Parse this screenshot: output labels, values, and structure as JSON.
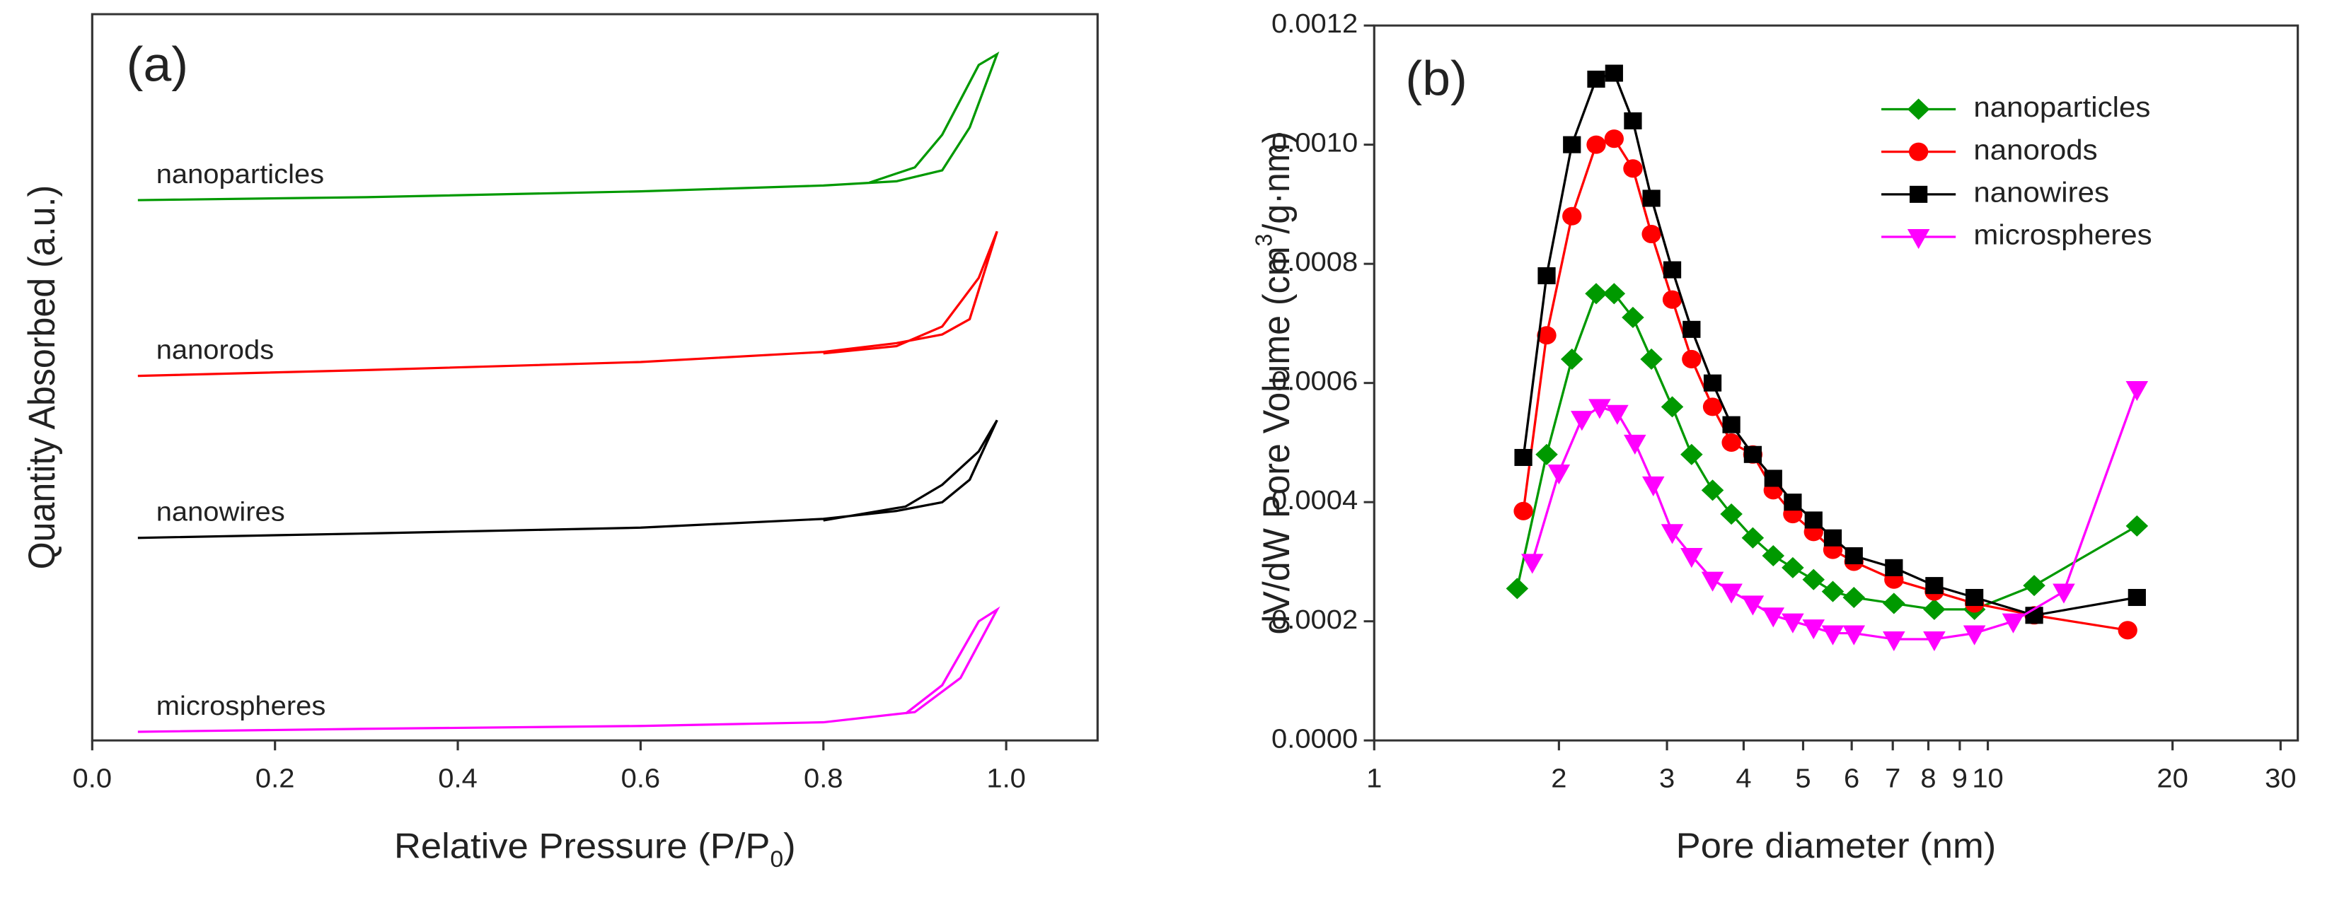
{
  "chart_data": [
    {
      "type": "line",
      "title": "(a)",
      "xlabel": [
        "Relative Pressure (P/P",
        "0",
        ")"
      ],
      "ylabel": "Quantity Absorbed (a.u.)",
      "xlim": [
        0,
        1.1
      ],
      "ylim": [
        0,
        100
      ],
      "xticks": [
        {
          "value": 0,
          "label": "0.0"
        },
        0.2,
        0.4,
        0.6,
        0.8,
        {
          "value": 1,
          "label": "1.0"
        }
      ],
      "series": [
        {
          "name": "nanoparticles",
          "color": "#009900",
          "x": [
            0.05,
            0.3,
            0.6,
            0.8,
            0.88,
            0.93,
            0.96,
            0.99,
            0.97,
            0.93,
            0.9,
            0.85
          ],
          "values": [
            74.4,
            74.8,
            75.6,
            76.4,
            77.0,
            78.5,
            84.4,
            94.5,
            93.0,
            83.4,
            78.9,
            76.8
          ]
        },
        {
          "name": "nanorods",
          "color": "#ff0000",
          "x": [
            0.05,
            0.3,
            0.6,
            0.8,
            0.88,
            0.93,
            0.96,
            0.99,
            0.97,
            0.93,
            0.88,
            0.8
          ],
          "values": [
            50.2,
            51.0,
            52.1,
            53.5,
            54.7,
            55.9,
            58.0,
            70.1,
            63.7,
            57.0,
            54.3,
            53.3
          ]
        },
        {
          "name": "nanowires",
          "color": "#000000",
          "x": [
            0.05,
            0.3,
            0.6,
            0.8,
            0.88,
            0.93,
            0.96,
            0.99,
            0.97,
            0.93,
            0.89,
            0.8
          ],
          "values": [
            27.9,
            28.5,
            29.3,
            30.5,
            31.6,
            32.8,
            35.9,
            44.1,
            39.8,
            35.2,
            32.2,
            30.3
          ]
        },
        {
          "name": "microspheres",
          "color": "#ff00ff",
          "x": [
            0.05,
            0.3,
            0.6,
            0.8,
            0.9,
            0.95,
            0.99,
            0.97,
            0.93,
            0.89
          ],
          "values": [
            1.2,
            1.6,
            2.0,
            2.5,
            3.9,
            8.6,
            18.0,
            16.4,
            7.6,
            3.7
          ]
        }
      ]
    },
    {
      "type": "line",
      "title": "(b)",
      "xlabel": "Pore diameter (nm)",
      "ylabel": [
        "dV/dW Pore Volume (cm",
        "3",
        "/g·nm)"
      ],
      "xscale": "log",
      "xlim": [
        1,
        32
      ],
      "ylim": [
        0,
        0.0012
      ],
      "xticks": [
        1,
        2,
        3,
        4,
        5,
        6,
        7,
        8,
        9,
        10,
        20,
        30
      ],
      "yticks": [
        {
          "value": 0,
          "label": "0.0000"
        },
        {
          "value": 0.0002,
          "label": "0.0002"
        },
        {
          "value": 0.0004,
          "label": "0.0004"
        },
        {
          "value": 0.0006,
          "label": "0.0006"
        },
        {
          "value": 0.0008,
          "label": "0.0008"
        },
        {
          "value": 0.001,
          "label": "0.0010"
        },
        {
          "value": 0.0012,
          "label": "0.0012"
        }
      ],
      "legend": "upper right",
      "series": [
        {
          "name": "nanoparticles",
          "color": "#009900",
          "marker": "diamond",
          "x": [
            1.71,
            1.91,
            2.1,
            2.3,
            2.46,
            2.64,
            2.83,
            3.06,
            3.29,
            3.56,
            3.82,
            4.14,
            4.47,
            4.81,
            5.2,
            5.59,
            6.05,
            7.03,
            8.18,
            9.51,
            11.9,
            17.5
          ],
          "values": [
            0.000255,
            0.00048,
            0.00064,
            0.00075,
            0.00075,
            0.00071,
            0.00064,
            0.00056,
            0.00048,
            0.00042,
            0.00038,
            0.00034,
            0.00031,
            0.00029,
            0.00027,
            0.00025,
            0.00024,
            0.00023,
            0.00022,
            0.00022,
            0.00026,
            0.00036
          ]
        },
        {
          "name": "nanorods",
          "color": "#ff0000",
          "marker": "circle",
          "x": [
            1.75,
            1.91,
            2.1,
            2.3,
            2.46,
            2.64,
            2.83,
            3.06,
            3.29,
            3.56,
            3.82,
            4.14,
            4.47,
            4.81,
            5.2,
            5.59,
            6.05,
            7.03,
            8.18,
            9.51,
            11.9,
            16.9
          ],
          "values": [
            0.000385,
            0.00068,
            0.00088,
            0.001,
            0.00101,
            0.00096,
            0.00085,
            0.00074,
            0.00064,
            0.00056,
            0.0005,
            0.00048,
            0.00042,
            0.00038,
            0.00035,
            0.00032,
            0.0003,
            0.00027,
            0.00025,
            0.00023,
            0.00021,
            0.000185
          ]
        },
        {
          "name": "nanowires",
          "color": "#000000",
          "marker": "square",
          "x": [
            1.75,
            1.91,
            2.1,
            2.3,
            2.46,
            2.64,
            2.83,
            3.06,
            3.29,
            3.56,
            3.82,
            4.14,
            4.47,
            4.81,
            5.2,
            5.59,
            6.05,
            7.03,
            8.18,
            9.51,
            11.9,
            17.5
          ],
          "values": [
            0.000475,
            0.00078,
            0.001,
            0.00111,
            0.00112,
            0.00104,
            0.00091,
            0.00079,
            0.00069,
            0.0006,
            0.00053,
            0.00048,
            0.00044,
            0.0004,
            0.00037,
            0.00034,
            0.00031,
            0.00029,
            0.00026,
            0.00024,
            0.00021,
            0.00024
          ]
        },
        {
          "name": "microspheres",
          "color": "#ff00ff",
          "marker": "triangle-down",
          "x": [
            1.81,
            2.0,
            2.18,
            2.33,
            2.49,
            2.66,
            2.85,
            3.06,
            3.29,
            3.56,
            3.82,
            4.14,
            4.47,
            4.81,
            5.2,
            5.59,
            6.05,
            7.03,
            8.18,
            9.51,
            11.0,
            13.3,
            17.5
          ],
          "values": [
            0.0003,
            0.00045,
            0.00054,
            0.00056,
            0.00055,
            0.0005,
            0.00043,
            0.00035,
            0.00031,
            0.00027,
            0.00025,
            0.00023,
            0.00021,
            0.0002,
            0.00019,
            0.00018,
            0.00018,
            0.00017,
            0.00017,
            0.00018,
            0.0002,
            0.00025,
            0.00059
          ]
        }
      ]
    }
  ]
}
